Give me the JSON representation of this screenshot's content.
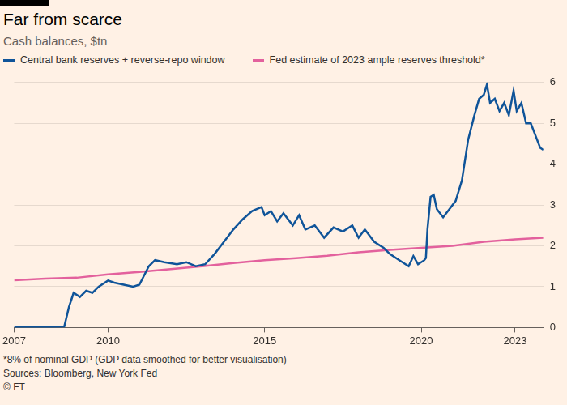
{
  "chart_data": {
    "type": "line",
    "title": "Far from scarce",
    "subtitle": "Cash balances, $tn",
    "annotations": [
      "*8% of nominal GDP (GDP data smoothed for better visualisation)",
      "Sources: Bloomberg, New York Fed",
      "© FT"
    ],
    "series": [
      {
        "name": "Central bank reserves + reverse-repo window",
        "color": "#0f5499",
        "x": [
          2007.0,
          2007.5,
          2008.0,
          2008.6,
          2008.75,
          2008.9,
          2009.1,
          2009.3,
          2009.5,
          2009.7,
          2010.0,
          2010.2,
          2010.5,
          2010.8,
          2011.0,
          2011.3,
          2011.5,
          2011.8,
          2012.2,
          2012.5,
          2012.8,
          2013.1,
          2013.4,
          2013.7,
          2014.0,
          2014.3,
          2014.6,
          2014.9,
          2015.0,
          2015.2,
          2015.4,
          2015.6,
          2015.9,
          2016.1,
          2016.3,
          2016.6,
          2016.9,
          2017.2,
          2017.5,
          2017.8,
          2018.0,
          2018.2,
          2018.5,
          2018.8,
          2019.0,
          2019.3,
          2019.6,
          2019.75,
          2019.9,
          2020.1,
          2020.15,
          2020.2,
          2020.3,
          2020.4,
          2020.5,
          2020.7,
          2020.9,
          2021.1,
          2021.3,
          2021.5,
          2021.7,
          2021.85,
          2022.0,
          2022.1,
          2022.2,
          2022.35,
          2022.5,
          2022.65,
          2022.8,
          2022.95,
          2023.05,
          2023.2,
          2023.35,
          2023.5,
          2023.65,
          2023.8,
          2023.9
        ],
        "values": [
          0.01,
          0.01,
          0.01,
          0.02,
          0.5,
          0.85,
          0.75,
          0.9,
          0.85,
          1.0,
          1.15,
          1.1,
          1.05,
          1.0,
          1.05,
          1.5,
          1.65,
          1.6,
          1.55,
          1.6,
          1.5,
          1.55,
          1.8,
          2.1,
          2.4,
          2.65,
          2.85,
          2.95,
          2.75,
          2.85,
          2.6,
          2.8,
          2.5,
          2.75,
          2.4,
          2.5,
          2.2,
          2.45,
          2.35,
          2.5,
          2.2,
          2.4,
          2.1,
          1.95,
          1.8,
          1.65,
          1.5,
          1.75,
          1.55,
          1.65,
          1.7,
          2.4,
          3.2,
          3.25,
          2.9,
          2.7,
          2.9,
          3.1,
          3.6,
          4.6,
          5.2,
          5.6,
          5.7,
          5.95,
          5.5,
          5.6,
          5.3,
          5.5,
          5.2,
          5.8,
          5.3,
          5.5,
          5.0,
          5.0,
          4.7,
          4.4,
          4.35
        ]
      },
      {
        "name": "Fed estimate of 2023 ample reserves threshold*",
        "color": "#e3619d",
        "x": [
          2007.0,
          2008.0,
          2009.0,
          2010.0,
          2011.0,
          2012.0,
          2013.0,
          2014.0,
          2015.0,
          2016.0,
          2017.0,
          2018.0,
          2019.0,
          2020.0,
          2021.0,
          2022.0,
          2023.0,
          2023.9
        ],
        "values": [
          1.16,
          1.2,
          1.22,
          1.3,
          1.36,
          1.43,
          1.5,
          1.58,
          1.65,
          1.7,
          1.76,
          1.84,
          1.9,
          1.95,
          2.0,
          2.1,
          2.16,
          2.2
        ]
      }
    ],
    "xlim": [
      2007,
      2023.9
    ],
    "xticks": [
      2007,
      2010,
      2015,
      2020,
      2023
    ],
    "ylim": [
      0,
      6
    ],
    "yticks": [
      0,
      1,
      2,
      3,
      4,
      5,
      6
    ],
    "grid": true,
    "legend": "top"
  }
}
